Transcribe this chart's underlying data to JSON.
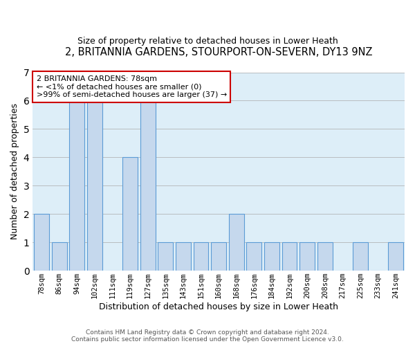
{
  "title": "2, BRITANNIA GARDENS, STOURPORT-ON-SEVERN, DY13 9NZ",
  "subtitle": "Size of property relative to detached houses in Lower Heath",
  "xlabel": "Distribution of detached houses by size in Lower Heath",
  "ylabel": "Number of detached properties",
  "categories": [
    "78sqm",
    "86sqm",
    "94sqm",
    "102sqm",
    "111sqm",
    "119sqm",
    "127sqm",
    "135sqm",
    "143sqm",
    "151sqm",
    "160sqm",
    "168sqm",
    "176sqm",
    "184sqm",
    "192sqm",
    "200sqm",
    "208sqm",
    "217sqm",
    "225sqm",
    "233sqm",
    "241sqm"
  ],
  "bar_values": [
    2,
    1,
    6,
    6,
    0,
    4,
    6,
    1,
    1,
    1,
    1,
    2,
    1,
    1,
    1,
    1,
    1,
    0,
    1,
    0,
    1
  ],
  "ylim": [
    0,
    7
  ],
  "yticks": [
    0,
    1,
    2,
    3,
    4,
    5,
    6,
    7
  ],
  "bar_color": "#c5d8ed",
  "bar_edgecolor": "#5b9bd5",
  "annotation_border_color": "#cc0000",
  "annotation_title": "2 BRITANNIA GARDENS: 78sqm",
  "annotation_line1": "← <1% of detached houses are smaller (0)",
  "annotation_line2": ">99% of semi-detached houses are larger (37) →",
  "footer1": "Contains HM Land Registry data © Crown copyright and database right 2024.",
  "footer2": "Contains public sector information licensed under the Open Government Licence v3.0.",
  "background_color": "#ffffff",
  "plot_bg_color": "#ddeef8",
  "grid_color": "#aaaaaa"
}
